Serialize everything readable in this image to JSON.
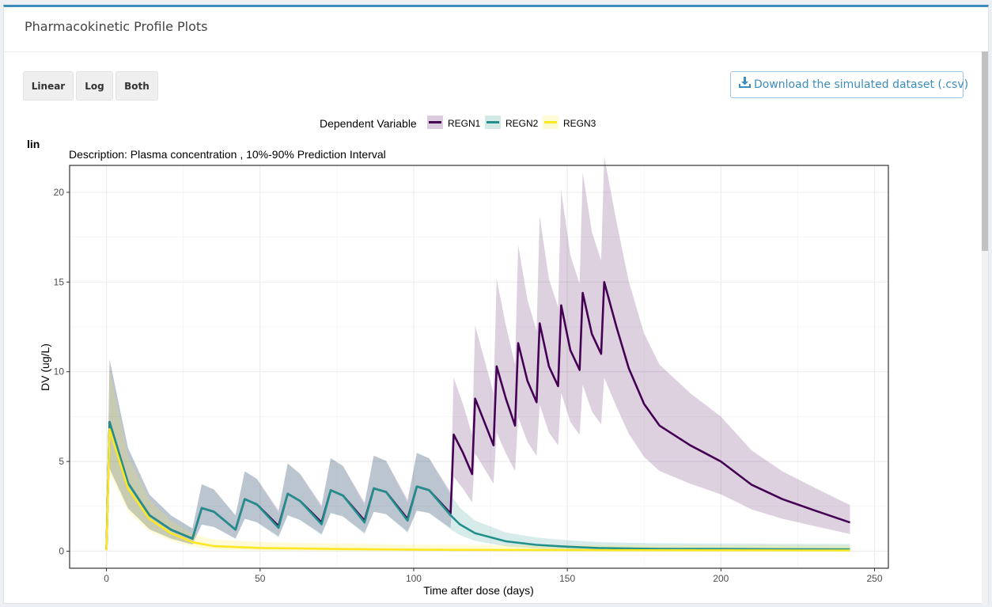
{
  "header": {
    "title": "Pharmacokinetic Profile Plots"
  },
  "buttons": {
    "linear": "Linear",
    "log": "Log",
    "both": "Both"
  },
  "download": {
    "label": "Download the simulated dataset (.csv)",
    "icon": "download-icon"
  },
  "colors": {
    "accent": "#3c8dbc",
    "REGN1": "#440154",
    "REGN2": "#21908C",
    "REGN3": "#FDE725"
  },
  "chart_data": {
    "type": "line",
    "panel_label": "lin",
    "title": "Description:  Plasma concentration , 10%-90% Prediction Interval",
    "legend_title": "Dependent Variable",
    "legend_position": "top",
    "xlabel": "Time after dose (days)",
    "ylabel": "DV (ug/L)",
    "xlim": [
      -12,
      254.5
    ],
    "ylim": [
      -0.95,
      21.5
    ],
    "x_ticks": [
      0,
      50,
      100,
      150,
      200,
      250
    ],
    "y_ticks": [
      0,
      5,
      10,
      15,
      20
    ],
    "grid": true,
    "series": [
      {
        "name": "REGN1",
        "color": "#440154",
        "x": [
          0,
          1,
          7,
          14,
          21,
          28,
          31,
          35,
          42,
          45,
          49,
          56,
          59,
          63,
          70,
          73,
          77,
          84,
          87,
          91,
          98,
          101,
          105,
          112,
          113,
          116,
          119,
          120,
          123,
          126,
          127,
          130,
          133,
          134,
          137,
          140,
          141,
          144,
          147,
          148,
          151,
          154,
          155,
          158,
          161,
          162,
          166,
          170,
          175,
          180,
          190,
          200,
          210,
          220,
          230,
          242
        ],
        "y": [
          0.1,
          7.2,
          3.8,
          2.0,
          1.2,
          0.7,
          2.4,
          2.2,
          1.2,
          2.9,
          2.6,
          1.4,
          3.2,
          2.8,
          1.6,
          3.4,
          3.1,
          1.7,
          3.5,
          3.3,
          1.8,
          3.6,
          3.4,
          2.1,
          6.5,
          5.5,
          4.3,
          8.5,
          7.2,
          5.9,
          10.3,
          8.5,
          7.0,
          11.6,
          9.5,
          8.3,
          12.7,
          10.3,
          9.2,
          13.7,
          11.2,
          10.1,
          14.4,
          12.1,
          11.0,
          15.0,
          12.5,
          10.2,
          8.2,
          7.0,
          5.9,
          5.0,
          3.7,
          2.9,
          2.3,
          1.6
        ]
      },
      {
        "name": "REGN2",
        "color": "#21908C",
        "x": [
          0,
          1,
          7,
          14,
          21,
          28,
          31,
          35,
          42,
          45,
          49,
          56,
          59,
          63,
          70,
          73,
          77,
          84,
          87,
          91,
          98,
          101,
          105,
          112,
          115,
          120,
          130,
          140,
          150,
          160,
          170,
          180,
          200,
          220,
          242
        ],
        "y": [
          0.1,
          7.2,
          3.8,
          2.0,
          1.2,
          0.7,
          2.4,
          2.2,
          1.2,
          2.9,
          2.6,
          1.3,
          3.2,
          2.8,
          1.5,
          3.4,
          3.1,
          1.6,
          3.5,
          3.3,
          1.7,
          3.6,
          3.4,
          2.0,
          1.5,
          1.0,
          0.55,
          0.35,
          0.25,
          0.18,
          0.15,
          0.13,
          0.12,
          0.11,
          0.1
        ]
      },
      {
        "name": "REGN3",
        "color": "#FDE725",
        "x": [
          0,
          1,
          7,
          14,
          21,
          28,
          35,
          50,
          75,
          100,
          150,
          200,
          242
        ],
        "y": [
          0.05,
          6.8,
          3.5,
          1.8,
          1.0,
          0.5,
          0.28,
          0.18,
          0.12,
          0.08,
          0.06,
          0.05,
          0.04
        ]
      }
    ]
  }
}
